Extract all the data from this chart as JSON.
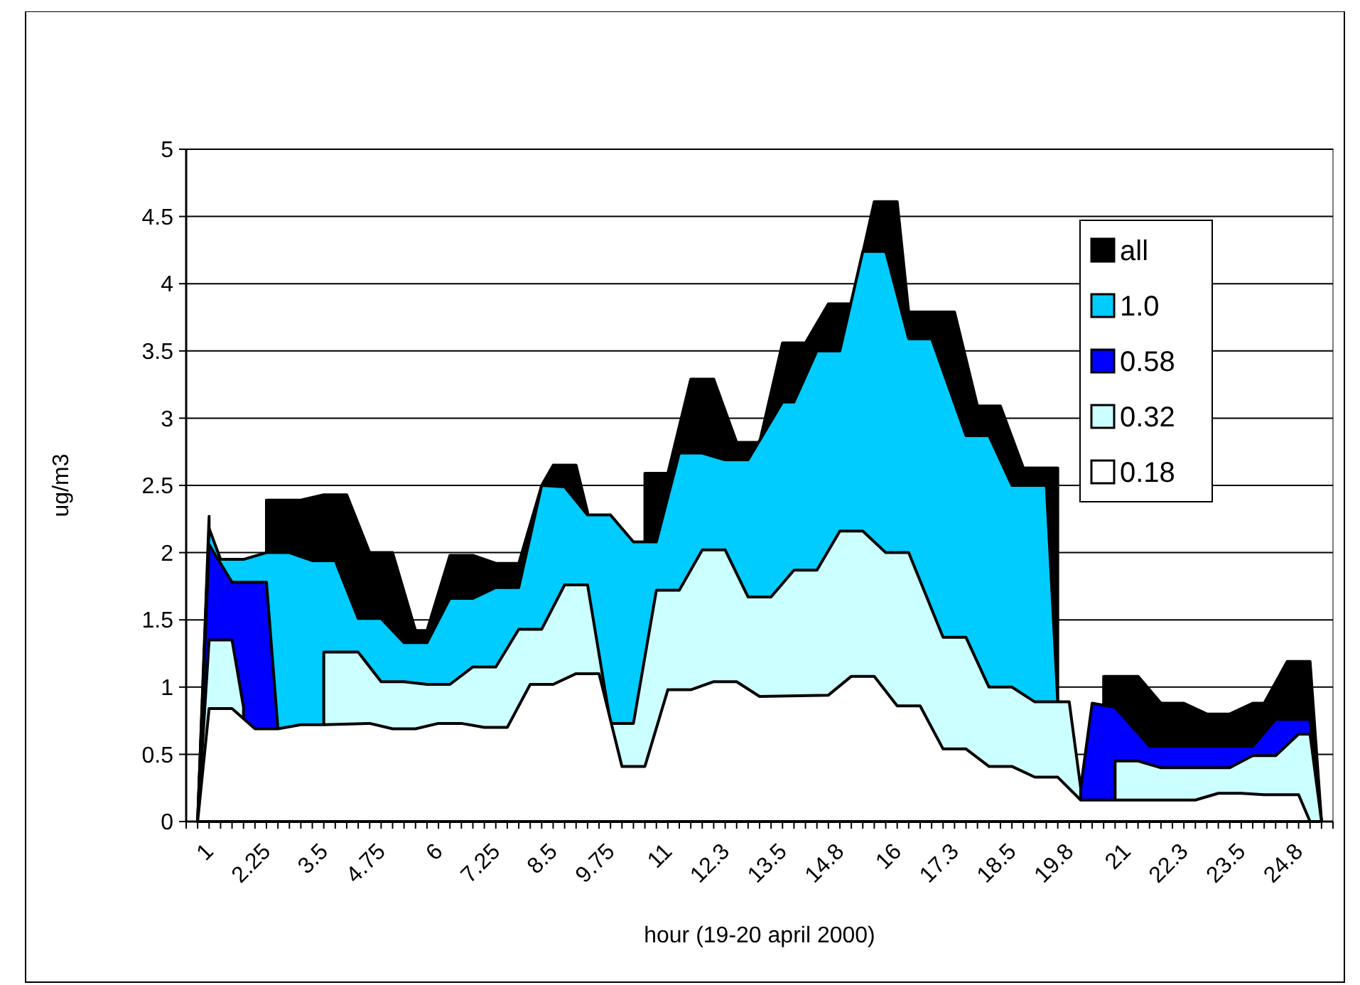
{
  "chart_data": {
    "type": "area",
    "xlabel": "hour (19-20 april 2000)",
    "ylabel": "ug/m3",
    "xlim": [
      0.75,
      25.75
    ],
    "ylim": [
      0,
      5
    ],
    "yticks": [
      0,
      0.5,
      1,
      1.5,
      2,
      2.5,
      3,
      3.5,
      4,
      4.5,
      5
    ],
    "grid": "y",
    "legend": "top right",
    "xticks": [
      1,
      2.25,
      3.5,
      4.75,
      6,
      7.25,
      8.5,
      9.75,
      11,
      {
        "value": 12.25,
        "label": "12.3"
      },
      13.5,
      {
        "value": 14.75,
        "label": "14.8"
      },
      16,
      {
        "value": 17.25,
        "label": "17.3"
      },
      18.5,
      {
        "value": 19.75,
        "label": "19.8"
      },
      21,
      {
        "value": 22.25,
        "label": "22.3"
      },
      23.5,
      {
        "value": 24.75,
        "label": "24.8"
      },
      {
        "value": 0.75,
        "label": null
      },
      {
        "value": 1.25,
        "label": null
      },
      {
        "value": 1.5,
        "label": null
      },
      {
        "value": 1.75,
        "label": null
      },
      {
        "value": 2,
        "label": null
      },
      {
        "value": 2.5,
        "label": null
      },
      {
        "value": 2.75,
        "label": null
      },
      {
        "value": 3,
        "label": null
      },
      {
        "value": 3.25,
        "label": null
      },
      {
        "value": 3.75,
        "label": null
      },
      {
        "value": 4,
        "label": null
      },
      {
        "value": 4.25,
        "label": null
      },
      {
        "value": 4.5,
        "label": null
      },
      {
        "value": 5,
        "label": null
      },
      {
        "value": 5.25,
        "label": null
      },
      {
        "value": 5.5,
        "label": null
      },
      {
        "value": 5.75,
        "label": null
      },
      {
        "value": 6.25,
        "label": null
      },
      {
        "value": 6.5,
        "label": null
      },
      {
        "value": 6.75,
        "label": null
      },
      {
        "value": 7,
        "label": null
      },
      {
        "value": 7.5,
        "label": null
      },
      {
        "value": 7.75,
        "label": null
      },
      {
        "value": 8,
        "label": null
      },
      {
        "value": 8.25,
        "label": null
      },
      {
        "value": 8.75,
        "label": null
      },
      {
        "value": 9,
        "label": null
      },
      {
        "value": 9.25,
        "label": null
      },
      {
        "value": 9.5,
        "label": null
      },
      {
        "value": 10,
        "label": null
      },
      {
        "value": 10.25,
        "label": null
      },
      {
        "value": 10.5,
        "label": null
      },
      {
        "value": 10.75,
        "label": null
      },
      {
        "value": 11.25,
        "label": null
      },
      {
        "value": 11.5,
        "label": null
      },
      {
        "value": 11.75,
        "label": null
      },
      {
        "value": 12,
        "label": null
      },
      {
        "value": 12.5,
        "label": null
      },
      {
        "value": 12.75,
        "label": null
      },
      {
        "value": 13,
        "label": null
      },
      {
        "value": 13.25,
        "label": null
      },
      {
        "value": 13.75,
        "label": null
      },
      {
        "value": 14,
        "label": null
      },
      {
        "value": 14.25,
        "label": null
      },
      {
        "value": 14.5,
        "label": null
      },
      {
        "value": 15,
        "label": null
      },
      {
        "value": 15.25,
        "label": null
      },
      {
        "value": 15.5,
        "label": null
      },
      {
        "value": 15.75,
        "label": null
      },
      {
        "value": 16.25,
        "label": null
      },
      {
        "value": 16.5,
        "label": null
      },
      {
        "value": 16.75,
        "label": null
      },
      {
        "value": 17,
        "label": null
      },
      {
        "value": 17.5,
        "label": null
      },
      {
        "value": 17.75,
        "label": null
      },
      {
        "value": 18,
        "label": null
      },
      {
        "value": 18.25,
        "label": null
      },
      {
        "value": 18.75,
        "label": null
      },
      {
        "value": 19,
        "label": null
      },
      {
        "value": 19.25,
        "label": null
      },
      {
        "value": 19.5,
        "label": null
      },
      {
        "value": 20,
        "label": null
      },
      {
        "value": 20.25,
        "label": null
      },
      {
        "value": 20.5,
        "label": null
      },
      {
        "value": 20.75,
        "label": null
      },
      {
        "value": 21.25,
        "label": null
      },
      {
        "value": 21.5,
        "label": null
      },
      {
        "value": 21.75,
        "label": null
      },
      {
        "value": 22,
        "label": null
      },
      {
        "value": 22.5,
        "label": null
      },
      {
        "value": 22.75,
        "label": null
      },
      {
        "value": 23,
        "label": null
      },
      {
        "value": 23.25,
        "label": null
      },
      {
        "value": 23.75,
        "label": null
      },
      {
        "value": 24,
        "label": null
      },
      {
        "value": 24.25,
        "label": null
      },
      {
        "value": 24.5,
        "label": null
      },
      {
        "value": 25,
        "label": null
      },
      {
        "value": 25.25,
        "label": null
      },
      {
        "value": 25.5,
        "label": null
      },
      {
        "value": 25.75,
        "label": null
      }
    ],
    "series": [
      {
        "name": "all",
        "color": "#000000",
        "x": [
          1,
          1.25,
          1.5,
          2.5,
          3.25,
          3.75,
          4.25,
          4.75,
          5.25,
          5.75,
          6,
          6.5,
          7,
          7.5,
          8,
          8.5,
          8.75,
          9.25,
          9.5,
          9.75,
          10.75,
          11.25,
          11.75,
          12.25,
          12.75,
          13.25,
          13.75,
          14.25,
          14.75,
          15.25,
          15.75,
          16.25,
          16.5,
          17.5,
          18,
          18.5,
          19,
          19.75,
          20.25,
          20.75,
          21.5,
          22,
          22.5,
          23,
          23.5,
          24,
          24.25,
          24.75,
          25.25,
          25.5
        ],
        "values": [
          0,
          2.27,
          null,
          2.39,
          2.39,
          2.43,
          2.43,
          2,
          2,
          1.42,
          1.42,
          1.98,
          1.98,
          1.92,
          1.92,
          2.5,
          2.65,
          2.65,
          2.3,
          null,
          2.59,
          2.59,
          3.29,
          3.29,
          2.82,
          2.82,
          3.56,
          3.56,
          3.85,
          3.85,
          4.61,
          4.61,
          3.79,
          3.79,
          3.09,
          3.09,
          2.63,
          2.63,
          null,
          1.08,
          1.08,
          0.88,
          0.88,
          0.8,
          0.8,
          0.88,
          0.88,
          1.19,
          1.19,
          0
        ]
      },
      {
        "name": "1.0",
        "color": "#00ccff",
        "x": [
          1,
          1.25,
          1.5,
          2,
          2.5,
          3,
          3.5,
          4,
          4.5,
          5,
          5.5,
          6,
          6.5,
          7,
          7.5,
          8,
          8.5,
          9,
          9.5,
          10,
          10.5,
          11,
          11.5,
          12,
          12.5,
          13,
          13.75,
          14,
          14.5,
          15,
          15.5,
          16,
          16.5,
          17,
          17.75,
          18.25,
          18.75,
          19.5,
          19.75
        ],
        "values": [
          0,
          2.18,
          1.95,
          1.95,
          2,
          2,
          1.94,
          1.94,
          1.51,
          1.51,
          1.33,
          1.33,
          1.66,
          1.66,
          1.74,
          1.74,
          2.5,
          2.49,
          2.28,
          2.28,
          2.08,
          2.08,
          2.74,
          2.74,
          2.69,
          2.69,
          3.12,
          3.12,
          3.5,
          3.5,
          4.24,
          4.24,
          3.59,
          3.59,
          2.87,
          2.87,
          2.5,
          2.5,
          0.89
        ]
      },
      {
        "name": "0.58",
        "color": "#0000ff",
        "x": [
          1,
          1.25,
          1.75,
          2.5,
          2.75,
          3,
          20.25,
          20.5,
          21,
          21.75,
          24,
          24.5,
          25.25,
          25.5
        ],
        "values": [
          0,
          2.06,
          1.78,
          1.78,
          0.69,
          null,
          0.25,
          0.88,
          0.85,
          0.56,
          0.56,
          0.76,
          0.76,
          0
        ]
      },
      {
        "name": "0.32",
        "color": "#ccffff",
        "x": [
          1,
          1.25,
          1.75,
          2,
          2.25,
          3.75,
          4.5,
          5,
          5.5,
          6,
          6.5,
          7,
          7.5,
          8,
          8.5,
          9,
          9.5,
          10,
          10.5,
          11,
          11.5,
          12,
          12.5,
          13,
          13.5,
          14,
          14.5,
          15,
          15.5,
          16,
          16.5,
          17.25,
          17.75,
          18.25,
          18.75,
          19.25,
          20,
          20.25,
          20.5,
          21,
          21.5,
          22,
          23.5,
          24,
          24.5,
          25,
          25.25,
          25.5
        ],
        "values": [
          0,
          1.35,
          1.35,
          0.85,
          null,
          1.26,
          1.26,
          1.04,
          1.04,
          1.02,
          1.02,
          1.15,
          1.15,
          1.43,
          1.43,
          1.76,
          1.76,
          0.73,
          0.73,
          1.72,
          1.72,
          2.02,
          2.02,
          1.67,
          1.67,
          1.87,
          1.87,
          2.16,
          2.16,
          2,
          2,
          1.37,
          1.37,
          1,
          1,
          0.89,
          0.89,
          0.25,
          null,
          0.45,
          0.45,
          0.4,
          0.4,
          0.49,
          0.49,
          0.65,
          0.65,
          0
        ]
      },
      {
        "name": "0.18",
        "color": "#ffffff",
        "x": [
          1,
          1.25,
          1.75,
          2.25,
          2.75,
          3.25,
          3.75,
          4.75,
          5.25,
          5.75,
          6.25,
          6.75,
          7.25,
          7.75,
          8.25,
          8.75,
          9.25,
          9.75,
          10.25,
          10.75,
          11.25,
          11.75,
          12.25,
          12.75,
          13.25,
          14.75,
          15.25,
          15.75,
          16.25,
          16.75,
          17.25,
          17.75,
          18.25,
          18.75,
          19.25,
          19.75,
          20.25,
          22.75,
          23.25,
          23.75,
          24.25,
          25,
          25.25
        ],
        "values": [
          0,
          0.84,
          0.84,
          0.69,
          0.69,
          0.72,
          0.72,
          0.73,
          0.69,
          0.69,
          0.73,
          0.73,
          0.7,
          0.7,
          1.02,
          1.02,
          1.1,
          1.1,
          0.41,
          0.41,
          0.98,
          0.98,
          1.04,
          1.04,
          0.93,
          0.94,
          1.08,
          1.08,
          0.86,
          0.86,
          0.54,
          0.54,
          0.41,
          0.41,
          0.33,
          0.33,
          0.16,
          0.16,
          0.21,
          0.21,
          0.2,
          0.2,
          0
        ]
      }
    ]
  }
}
